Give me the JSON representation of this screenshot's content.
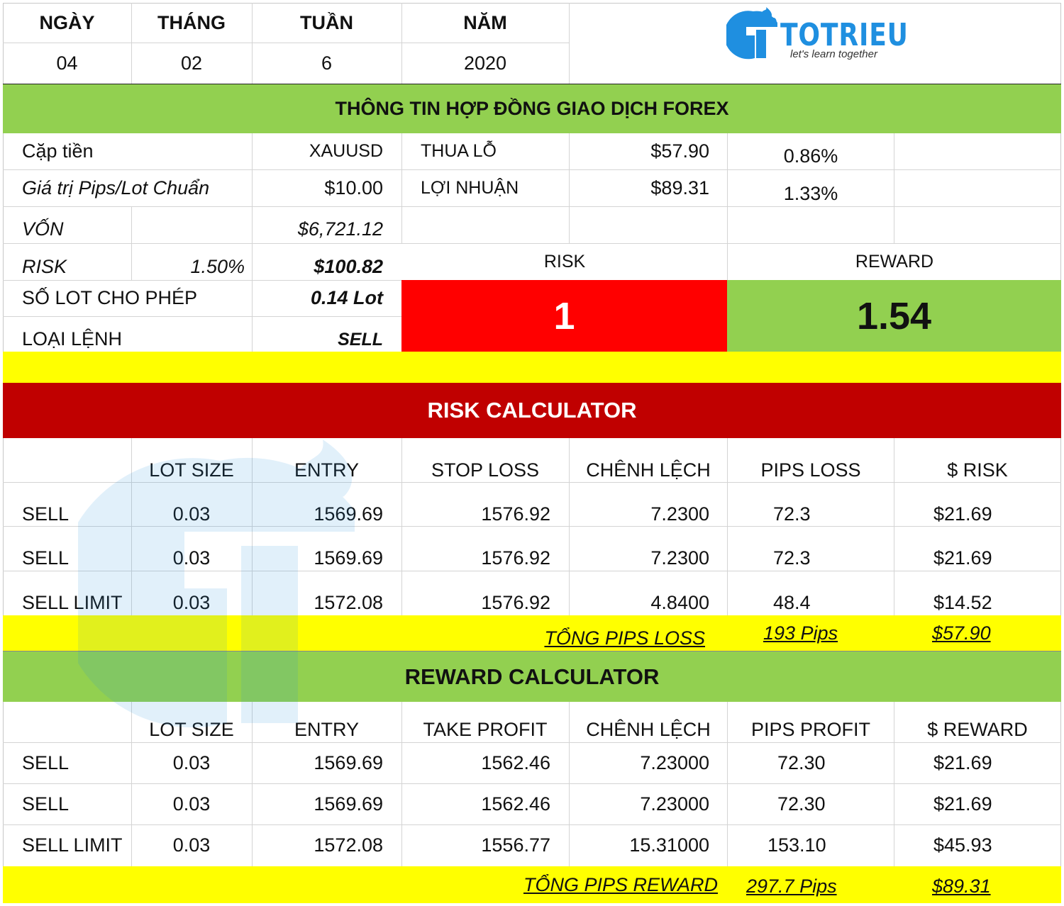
{
  "colors": {
    "green": "#92d050",
    "yellow": "#ffff00",
    "dark_red": "#c00000",
    "red": "#ff0000",
    "logo_blue": "#1f8fe0"
  },
  "date": {
    "headers": [
      "NGÀY",
      "THÁNG",
      "TUẦN",
      "NĂM"
    ],
    "values": [
      "04",
      "02",
      "6",
      "2020"
    ]
  },
  "logo": {
    "icon": "torch-t-logo-icon",
    "name": "TOTRIEU",
    "tagline": "let's learn together"
  },
  "contract": {
    "title": "THÔNG TIN HỢP ĐỒNG GIAO DỊCH FOREX",
    "pair_label": "Cặp tiền",
    "pair_value": "XAUUSD",
    "pip_label": "Giá trị Pips/Lot Chuẩn",
    "pip_value": "$10.00",
    "loss_label": "THUA LỖ",
    "loss_value": "$57.90",
    "loss_pct": "0.86%",
    "profit_label": "LỢI NHUẬN",
    "profit_value": "$89.31",
    "profit_pct": "1.33%",
    "capital_label": "VỐN",
    "capital_value": "$6,721.12",
    "risk_label": "RISK",
    "risk_pct": "1.50%",
    "risk_value": "$100.82",
    "lot_label": "SỐ LOT CHO PHÉP",
    "lot_value": "0.14 Lot",
    "order_label": "LOẠI LỆNH",
    "order_value": "SELL",
    "rr_risk_label": "RISK",
    "rr_reward_label": "REWARD",
    "rr_risk_value": "1",
    "rr_reward_value": "1.54"
  },
  "risk_calc": {
    "title": "RISK CALCULATOR",
    "headers": [
      "",
      "LOT SIZE",
      "ENTRY",
      "STOP LOSS",
      "CHÊNH LỆCH",
      "PIPS LOSS",
      "$ RISK"
    ],
    "rows": [
      [
        "SELL",
        "0.03",
        "1569.69",
        "1576.92",
        "7.2300",
        "72.3",
        "$21.69"
      ],
      [
        "SELL",
        "0.03",
        "1569.69",
        "1576.92",
        "7.2300",
        "72.3",
        "$21.69"
      ],
      [
        "SELL LIMIT",
        "0.03",
        "1572.08",
        "1576.92",
        "4.8400",
        "48.4",
        "$14.52"
      ]
    ],
    "total_label": "TỔNG PIPS LOSS",
    "total_pips": "193 Pips",
    "total_money": "$57.90"
  },
  "reward_calc": {
    "title": "REWARD CALCULATOR",
    "headers": [
      "",
      "LOT SIZE",
      "ENTRY",
      "TAKE PROFIT",
      "CHÊNH LỆCH",
      "PIPS PROFIT",
      "$ REWARD"
    ],
    "rows": [
      [
        "SELL",
        "0.03",
        "1569.69",
        "1562.46",
        "7.23000",
        "72.30",
        "$21.69"
      ],
      [
        "SELL",
        "0.03",
        "1569.69",
        "1562.46",
        "7.23000",
        "72.30",
        "$21.69"
      ],
      [
        "SELL LIMIT",
        "0.03",
        "1572.08",
        "1556.77",
        "15.31000",
        "153.10",
        "$45.93"
      ]
    ],
    "total_label": "TỔNG PIPS REWARD",
    "total_pips": "297.7 Pips",
    "total_money": "$89.31"
  }
}
